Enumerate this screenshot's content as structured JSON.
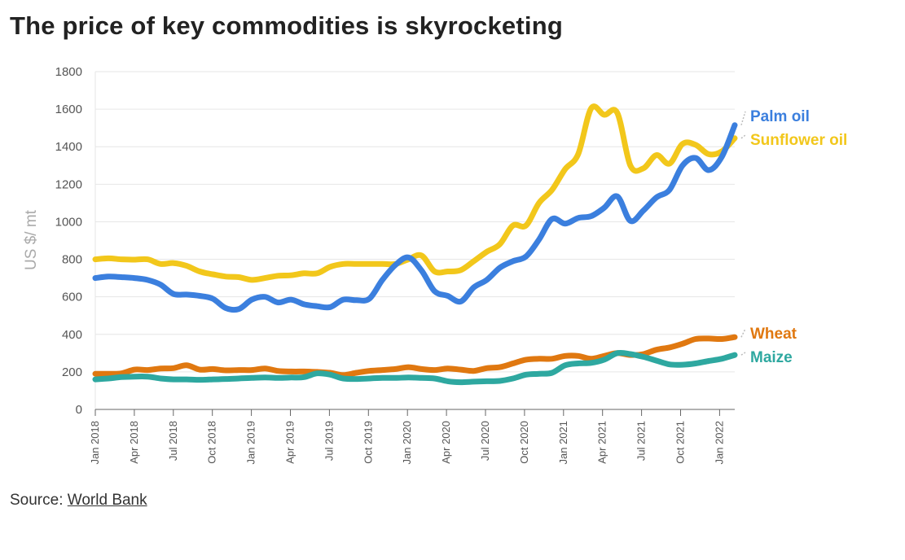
{
  "title": "The price of key commodities is skyrocketing",
  "source": {
    "prefix": "Source: ",
    "link": "World Bank"
  },
  "chart_data": {
    "type": "line",
    "title": "The price of key commodities is skyrocketing",
    "xlabel": "",
    "ylabel": "US $/ mt",
    "ylim": [
      0,
      1800
    ],
    "yticks": [
      0,
      200,
      400,
      600,
      800,
      1000,
      1200,
      1400,
      1600,
      1800
    ],
    "x_tick_labels": [
      "Jan 2018",
      "Apr 2018",
      "Jul 2018",
      "Oct 2018",
      "Jan 2019",
      "Apr 2019",
      "Jul 2019",
      "Oct 2019",
      "Jan 2020",
      "Apr 2020",
      "Jul 2020",
      "Oct 2020",
      "Jan 2021",
      "Apr 2021",
      "Jul 2021",
      "Oct 2021",
      "Jan 2022"
    ],
    "x_start": "Jan 2018",
    "x_end": "Mar 2022",
    "grid": true,
    "series": [
      {
        "name": "Palm oil",
        "color": "#3b7fde",
        "values": [
          700,
          708,
          705,
          700,
          690,
          665,
          615,
          612,
          605,
          590,
          540,
          535,
          585,
          600,
          570,
          585,
          560,
          550,
          545,
          585,
          582,
          590,
          690,
          770,
          810,
          740,
          630,
          605,
          575,
          650,
          690,
          755,
          790,
          815,
          905,
          1015,
          990,
          1020,
          1030,
          1075,
          1135,
          1005,
          1060,
          1130,
          1170,
          1300,
          1340,
          1275,
          1345,
          1515
        ]
      },
      {
        "name": "Sunflower oil",
        "color": "#f2c71b",
        "values": [
          800,
          805,
          800,
          798,
          800,
          775,
          780,
          765,
          735,
          720,
          708,
          705,
          690,
          700,
          712,
          715,
          725,
          725,
          760,
          775,
          775,
          775,
          775,
          775,
          800,
          820,
          735,
          735,
          742,
          790,
          840,
          880,
          980,
          980,
          1100,
          1170,
          1280,
          1360,
          1605,
          1570,
          1580,
          1300,
          1285,
          1355,
          1310,
          1415,
          1410,
          1360,
          1375,
          1445
        ]
      },
      {
        "name": "Wheat",
        "color": "#e07810",
        "values": [
          190,
          190,
          192,
          212,
          210,
          218,
          220,
          235,
          212,
          215,
          208,
          210,
          210,
          218,
          205,
          202,
          202,
          200,
          195,
          183,
          195,
          205,
          210,
          215,
          225,
          215,
          210,
          218,
          212,
          205,
          220,
          225,
          245,
          265,
          270,
          270,
          285,
          285,
          270,
          285,
          300,
          290,
          295,
          318,
          330,
          350,
          375,
          378,
          375,
          385
        ]
      },
      {
        "name": "Maize",
        "color": "#2ea8a0",
        "values": [
          160,
          165,
          172,
          175,
          175,
          165,
          160,
          160,
          158,
          160,
          162,
          165,
          168,
          170,
          168,
          170,
          172,
          192,
          185,
          165,
          162,
          165,
          168,
          168,
          170,
          168,
          165,
          150,
          145,
          148,
          150,
          152,
          165,
          185,
          190,
          195,
          235,
          245,
          248,
          265,
          300,
          295,
          280,
          260,
          240,
          238,
          245,
          258,
          270,
          290
        ]
      }
    ]
  }
}
